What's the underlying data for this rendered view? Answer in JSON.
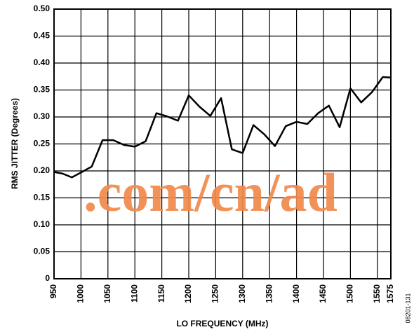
{
  "chart_data": {
    "type": "line",
    "x_label": "LO FREQUENCY (MHz)",
    "y_label": "RMS JITTER (Degrees)",
    "watermark": ".com/cn/ad",
    "figure_id": "08201-131",
    "x": [
      950,
      966,
      983,
      1000,
      1020,
      1040,
      1060,
      1080,
      1100,
      1120,
      1140,
      1160,
      1180,
      1200,
      1220,
      1240,
      1260,
      1280,
      1300,
      1320,
      1340,
      1360,
      1380,
      1400,
      1420,
      1440,
      1460,
      1480,
      1500,
      1520,
      1540,
      1560,
      1575
    ],
    "series": [
      {
        "name": "RMS Jitter",
        "color": "#000000",
        "values": [
          0.198,
          0.195,
          0.188,
          0.197,
          0.208,
          0.257,
          0.257,
          0.248,
          0.245,
          0.255,
          0.307,
          0.301,
          0.293,
          0.34,
          0.319,
          0.302,
          0.335,
          0.24,
          0.233,
          0.285,
          0.268,
          0.246,
          0.283,
          0.291,
          0.287,
          0.307,
          0.321,
          0.281,
          0.353,
          0.327,
          0.346,
          0.374,
          0.373
        ]
      }
    ],
    "xlim": [
      950,
      1575
    ],
    "xticks": [
      950,
      1000,
      1050,
      1100,
      1150,
      1200,
      1250,
      1300,
      1350,
      1400,
      1450,
      1500,
      1550,
      1575
    ],
    "ylim": [
      0,
      0.5
    ],
    "yticks": [
      0,
      0.05,
      {
        "value": 0.1,
        "label": "0.10"
      },
      0.15,
      {
        "value": 0.2,
        "label": "0.20"
      },
      0.25,
      {
        "value": 0.3,
        "label": "0.30"
      },
      0.35,
      {
        "value": 0.4,
        "label": "0.40"
      },
      0.45,
      {
        "value": 0.5,
        "label": "0.50"
      }
    ],
    "grid": true
  }
}
